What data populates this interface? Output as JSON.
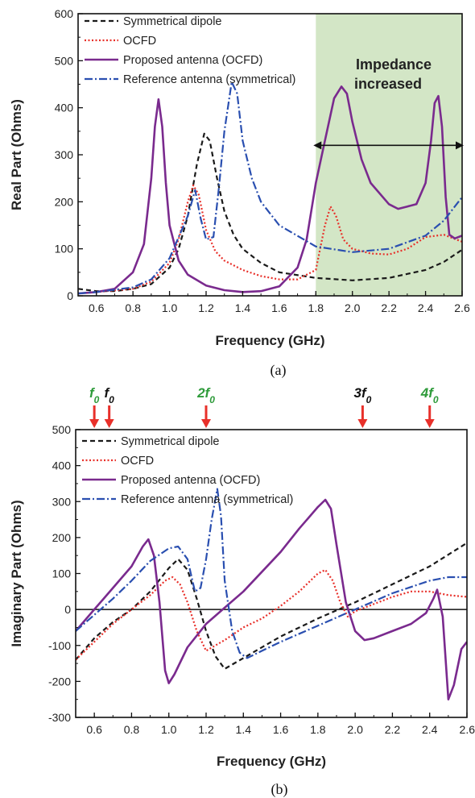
{
  "colors": {
    "symmetrical": "#1a1a1a",
    "ocfd": "#e8302a",
    "proposed": "#7a2a8e",
    "reference": "#2a4fb0",
    "shade": "#d3e6c6",
    "arrow_red": "#e8302a",
    "harm_green": "#2e9b3a",
    "harm_black": "#111111"
  },
  "legend": [
    {
      "label": "Symmetrical dipole",
      "key": "symmetrical",
      "dash": "6,4"
    },
    {
      "label": "OCFD",
      "key": "ocfd",
      "dash": "2,2.5"
    },
    {
      "label": "Proposed antenna (OCFD)",
      "key": "proposed",
      "dash": ""
    },
    {
      "label": "Reference antenna (symmetrical)",
      "key": "reference",
      "dash": "10,3,2,3"
    }
  ],
  "chart_data": [
    {
      "type": "line",
      "caption": "(a)",
      "xlabel": "Frequency (GHz)",
      "ylabel": "Real Part (Ohms)",
      "xlim": [
        0.5,
        2.6
      ],
      "ylim": [
        0,
        600
      ],
      "xticks": [
        0.6,
        0.8,
        1.0,
        1.2,
        1.4,
        1.6,
        1.8,
        2.0,
        2.2,
        2.4,
        2.6
      ],
      "yticks": [
        0,
        100,
        200,
        300,
        400,
        500,
        600
      ],
      "shaded_region": {
        "x": [
          1.8,
          2.6
        ],
        "label_line1": "Impedance",
        "label_line2": "increased"
      },
      "series": [
        {
          "name": "Symmetrical dipole",
          "key": "symmetrical",
          "x": [
            0.5,
            0.6,
            0.7,
            0.8,
            0.9,
            1.0,
            1.05,
            1.1,
            1.15,
            1.19,
            1.22,
            1.26,
            1.3,
            1.35,
            1.4,
            1.5,
            1.6,
            1.8,
            2.0,
            2.2,
            2.4,
            2.5,
            2.6
          ],
          "y": [
            15,
            10,
            10,
            15,
            25,
            60,
            100,
            170,
            280,
            345,
            330,
            250,
            180,
            130,
            100,
            70,
            50,
            38,
            33,
            38,
            55,
            72,
            98
          ]
        },
        {
          "name": "OCFD",
          "key": "ocfd",
          "x": [
            0.5,
            0.6,
            0.8,
            0.9,
            1.0,
            1.05,
            1.1,
            1.13,
            1.16,
            1.2,
            1.25,
            1.3,
            1.4,
            1.5,
            1.6,
            1.7,
            1.8,
            1.85,
            1.88,
            1.91,
            1.95,
            2.0,
            2.1,
            2.2,
            2.3,
            2.4,
            2.5,
            2.6
          ],
          "y": [
            5,
            8,
            15,
            30,
            70,
            120,
            200,
            235,
            215,
            140,
            95,
            75,
            55,
            42,
            35,
            35,
            55,
            150,
            190,
            170,
            120,
            100,
            90,
            88,
            100,
            125,
            130,
            115
          ]
        },
        {
          "name": "Proposed antenna (OCFD)",
          "key": "proposed",
          "x": [
            0.5,
            0.6,
            0.7,
            0.8,
            0.86,
            0.9,
            0.92,
            0.94,
            0.96,
            0.98,
            1.0,
            1.05,
            1.1,
            1.2,
            1.3,
            1.4,
            1.5,
            1.6,
            1.7,
            1.75,
            1.8,
            1.85,
            1.9,
            1.94,
            1.97,
            2.0,
            2.05,
            2.1,
            2.2,
            2.25,
            2.3,
            2.35,
            2.4,
            2.43,
            2.45,
            2.47,
            2.49,
            2.51,
            2.53,
            2.56,
            2.6
          ],
          "y": [
            5,
            8,
            15,
            50,
            110,
            250,
            360,
            418,
            360,
            240,
            150,
            75,
            45,
            22,
            12,
            8,
            10,
            20,
            60,
            120,
            240,
            330,
            420,
            445,
            430,
            370,
            290,
            240,
            195,
            185,
            190,
            195,
            240,
            330,
            410,
            425,
            360,
            210,
            130,
            122,
            128
          ]
        },
        {
          "name": "Reference antenna (symmetrical)",
          "key": "reference",
          "x": [
            0.5,
            0.6,
            0.8,
            0.9,
            1.0,
            1.1,
            1.14,
            1.17,
            1.2,
            1.24,
            1.27,
            1.3,
            1.34,
            1.37,
            1.4,
            1.45,
            1.5,
            1.6,
            1.8,
            2.0,
            2.2,
            2.4,
            2.5,
            2.6
          ],
          "y": [
            5,
            8,
            18,
            35,
            80,
            170,
            225,
            165,
            120,
            125,
            230,
            350,
            455,
            430,
            330,
            250,
            200,
            150,
            105,
            93,
            100,
            128,
            160,
            210
          ]
        }
      ]
    },
    {
      "type": "line",
      "caption": "(b)",
      "xlabel": "Frequency (GHz)",
      "ylabel": "Imaginary Part (Ohms)",
      "xlim": [
        0.5,
        2.6
      ],
      "ylim": [
        -300,
        500
      ],
      "xticks": [
        0.6,
        0.8,
        1.0,
        1.2,
        1.4,
        1.6,
        1.8,
        2.0,
        2.2,
        2.4,
        2.6
      ],
      "yticks": [
        -300,
        -200,
        -100,
        0,
        100,
        200,
        300,
        400,
        500
      ],
      "harmonics": [
        {
          "label": "f",
          "sub": "0",
          "x": 0.6,
          "color": "harm_green"
        },
        {
          "label": "f",
          "sub": "0",
          "x": 0.68,
          "color": "harm_black"
        },
        {
          "label": "2f",
          "sub": "0",
          "x": 1.2,
          "color": "harm_green"
        },
        {
          "label": "3f",
          "sub": "0",
          "x": 2.04,
          "color": "harm_black"
        },
        {
          "label": "4f",
          "sub": "0",
          "x": 2.4,
          "color": "harm_green"
        }
      ],
      "series": [
        {
          "name": "Symmetrical dipole",
          "key": "symmetrical",
          "x": [
            0.5,
            0.6,
            0.7,
            0.8,
            0.9,
            1.0,
            1.05,
            1.1,
            1.15,
            1.2,
            1.25,
            1.3,
            1.4,
            1.6,
            1.8,
            2.0,
            2.2,
            2.4,
            2.6
          ],
          "y": [
            -140,
            -80,
            -35,
            0,
            50,
            115,
            140,
            110,
            30,
            -60,
            -130,
            -165,
            -135,
            -75,
            -25,
            20,
            70,
            120,
            185
          ]
        },
        {
          "name": "OCFD",
          "key": "ocfd",
          "x": [
            0.5,
            0.6,
            0.7,
            0.8,
            0.9,
            0.98,
            1.02,
            1.06,
            1.1,
            1.15,
            1.2,
            1.3,
            1.4,
            1.5,
            1.6,
            1.7,
            1.8,
            1.84,
            1.88,
            1.92,
            1.96,
            2.0,
            2.1,
            2.2,
            2.3,
            2.4,
            2.5,
            2.6
          ],
          "y": [
            -140,
            -90,
            -40,
            0,
            40,
            80,
            90,
            70,
            20,
            -60,
            -115,
            -85,
            -50,
            -25,
            10,
            50,
            100,
            110,
            80,
            20,
            -20,
            -5,
            15,
            35,
            50,
            50,
            40,
            35
          ]
        },
        {
          "name": "Proposed antenna (OCFD)",
          "key": "proposed",
          "x": [
            0.5,
            0.6,
            0.7,
            0.8,
            0.86,
            0.89,
            0.92,
            0.95,
            0.98,
            1.0,
            1.03,
            1.1,
            1.2,
            1.3,
            1.4,
            1.5,
            1.6,
            1.7,
            1.8,
            1.84,
            1.87,
            1.9,
            1.95,
            2.0,
            2.05,
            2.1,
            2.2,
            2.3,
            2.38,
            2.42,
            2.44,
            2.47,
            2.5,
            2.53,
            2.57,
            2.6
          ],
          "y": [
            -60,
            0,
            60,
            120,
            175,
            195,
            150,
            20,
            -170,
            -205,
            -180,
            -105,
            -40,
            5,
            50,
            105,
            160,
            225,
            285,
            305,
            280,
            180,
            20,
            -60,
            -85,
            -80,
            -60,
            -40,
            -10,
            30,
            55,
            -20,
            -250,
            -210,
            -110,
            -90
          ]
        },
        {
          "name": "Reference antenna (symmetrical)",
          "key": "reference",
          "x": [
            0.5,
            0.6,
            0.7,
            0.8,
            0.9,
            1.0,
            1.05,
            1.1,
            1.14,
            1.17,
            1.2,
            1.23,
            1.26,
            1.28,
            1.3,
            1.34,
            1.38,
            1.42,
            1.5,
            1.6,
            1.8,
            2.0,
            2.2,
            2.4,
            2.5,
            2.6
          ],
          "y": [
            -60,
            -15,
            30,
            80,
            135,
            170,
            175,
            140,
            50,
            60,
            140,
            250,
            335,
            260,
            80,
            -60,
            -120,
            -135,
            -115,
            -90,
            -45,
            0,
            45,
            80,
            90,
            90
          ]
        }
      ]
    }
  ]
}
